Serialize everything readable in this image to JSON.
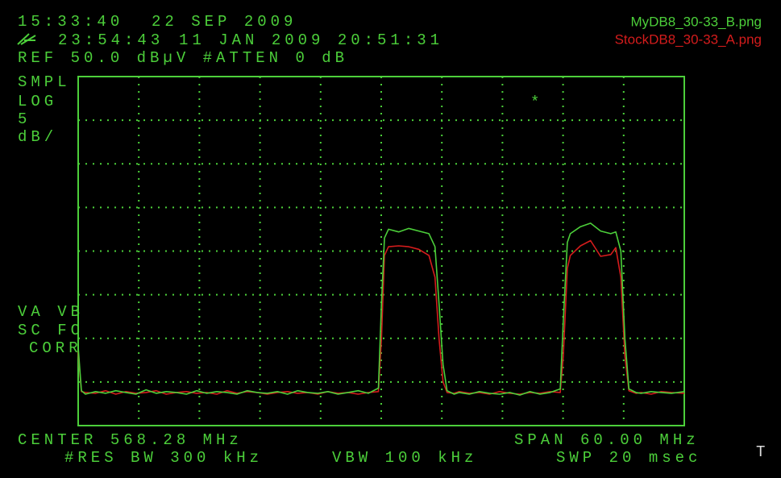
{
  "chart_data": {
    "type": "line",
    "x": [
      538.28,
      538.6,
      539,
      540,
      541,
      542,
      543,
      544,
      545,
      546,
      547,
      548,
      549,
      550,
      551,
      552,
      553,
      554,
      555,
      556,
      557,
      558,
      559,
      560,
      561,
      562,
      563,
      564,
      565,
      566,
      567,
      568,
      568.3,
      568.6,
      569,
      570,
      571,
      572,
      573,
      573.6,
      574,
      574.4,
      574.8,
      575.5,
      576,
      577,
      578,
      579,
      580,
      581,
      582,
      583,
      584,
      585,
      586,
      586.3,
      586.7,
      587,
      588,
      589,
      590,
      591,
      591.5,
      592,
      592.4,
      592.8,
      593.5,
      594,
      595,
      596,
      597,
      598.28
    ],
    "series": [
      {
        "name": "MyDB8_30-33_B.png",
        "color": "#4ccf3a",
        "values": [
          19,
          14,
          13.6,
          13.9,
          13.7,
          14.0,
          13.8,
          13.6,
          14.1,
          13.7,
          13.9,
          13.8,
          13.6,
          14.0,
          13.7,
          13.9,
          13.8,
          13.6,
          14.0,
          13.8,
          13.7,
          13.9,
          13.6,
          14.0,
          13.8,
          13.7,
          13.9,
          13.6,
          13.8,
          14.0,
          13.7,
          14.3,
          24,
          31.5,
          32.5,
          32.2,
          32.6,
          32.3,
          32.0,
          30.5,
          24,
          17,
          14,
          13.6,
          13.8,
          13.6,
          13.9,
          13.7,
          13.6,
          13.8,
          13.5,
          13.9,
          13.6,
          13.8,
          14.2,
          22,
          31,
          32,
          32.8,
          33.2,
          32.3,
          32.0,
          32.2,
          30,
          20,
          14.2,
          13.8,
          13.7,
          13.9,
          13.8,
          13.7,
          13.9
        ]
      },
      {
        "name": "StockDB8_30-33_A.png",
        "color": "#d41c1c",
        "values": [
          18.5,
          13.9,
          13.8,
          13.7,
          14.0,
          13.6,
          13.9,
          13.7,
          13.8,
          14.0,
          13.6,
          13.8,
          13.9,
          13.7,
          13.8,
          13.6,
          14.0,
          13.7,
          13.9,
          13.8,
          13.6,
          13.8,
          13.9,
          13.7,
          13.8,
          13.6,
          13.9,
          13.7,
          13.8,
          13.6,
          13.8,
          13.9,
          20,
          29.5,
          30.5,
          30.6,
          30.5,
          30.2,
          29.5,
          27,
          20,
          15,
          13.8,
          13.7,
          13.9,
          13.7,
          13.8,
          13.6,
          13.9,
          13.7,
          13.6,
          13.8,
          13.7,
          13.9,
          13.8,
          18,
          28,
          29.5,
          30.6,
          31.2,
          29.4,
          29.6,
          30.4,
          27,
          18,
          14,
          13.7,
          13.8,
          13.6,
          13.9,
          13.8,
          13.7
        ]
      }
    ],
    "xlim": [
      538.28,
      598.28
    ],
    "ylim": [
      10,
      50
    ],
    "xticks": [
      538.28,
      544.28,
      550.28,
      556.28,
      562.28,
      568.28,
      574.28,
      580.28,
      586.28,
      592.28,
      598.28
    ],
    "yticks": [
      10,
      15,
      20,
      25,
      30,
      35,
      40,
      45,
      50
    ],
    "grid": true
  },
  "header": {
    "time": "15:33:40",
    "date": "22 SEP 2009",
    "ref_time": "23:54:43",
    "ref_date": "11 JAN 2009 20:51:31",
    "ref_level": "REF 50.0 dBµV #ATTEN 0 dB"
  },
  "left_labels": [
    "SMPL",
    "LOG",
    "5",
    "dB/"
  ],
  "status_labels": [
    "VA VB",
    "SC FC",
    "CORR"
  ],
  "footer": {
    "center": "CENTER 568.28 MHz",
    "span": "SPAN 60.00 MHz",
    "res_bw": "#RES BW 300 kHz",
    "vbw": "VBW 100 kHz",
    "sweep": "SWP 20 msec"
  },
  "marker": "*",
  "corner": "T"
}
